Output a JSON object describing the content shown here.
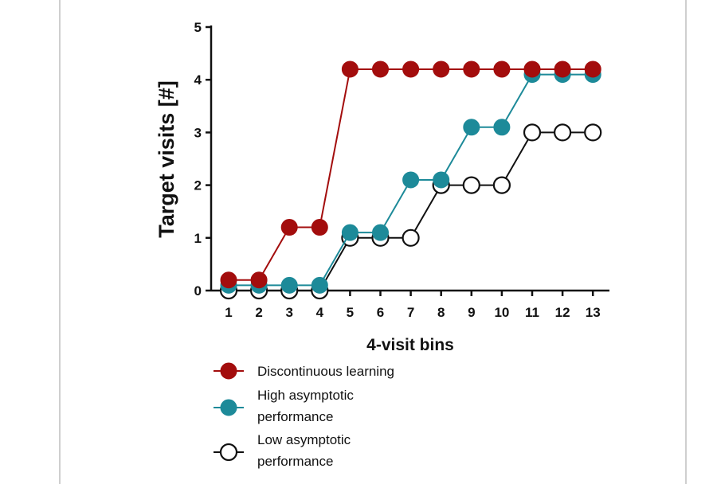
{
  "chart_data": {
    "type": "line",
    "xlabel": "4-visit bins",
    "ylabel": "Target visits [#]",
    "x": [
      1,
      2,
      3,
      4,
      5,
      6,
      7,
      8,
      9,
      10,
      11,
      12,
      13
    ],
    "xlim": [
      0.5,
      13.5
    ],
    "ylim": [
      0,
      5
    ],
    "y_ticks": [
      0,
      1,
      2,
      3,
      4,
      5
    ],
    "grid": false,
    "legend_position": "bottom",
    "series": [
      {
        "name": "Discontinuous learning",
        "legend_lines": [
          "Discontinuous learning"
        ],
        "color": "#a30d0d",
        "marker": "filled-circle",
        "values": [
          0.2,
          0.2,
          1.2,
          1.2,
          4.2,
          4.2,
          4.2,
          4.2,
          4.2,
          4.2,
          4.2,
          4.2,
          4.2
        ]
      },
      {
        "name": "High asymptotic performance",
        "legend_lines": [
          "High asymptotic",
          "performance"
        ],
        "color": "#1d8a99",
        "marker": "filled-circle",
        "values": [
          0.1,
          0.1,
          0.1,
          0.1,
          1.1,
          1.1,
          2.1,
          2.1,
          3.1,
          3.1,
          4.1,
          4.1,
          4.1
        ]
      },
      {
        "name": "Low asymptotic performance",
        "legend_lines": [
          "Low asymptotic",
          "performance"
        ],
        "color": "#111111",
        "marker": "open-circle",
        "values": [
          0,
          0,
          0,
          0,
          1,
          1,
          1,
          2,
          2,
          2,
          3,
          3,
          3
        ]
      }
    ]
  }
}
